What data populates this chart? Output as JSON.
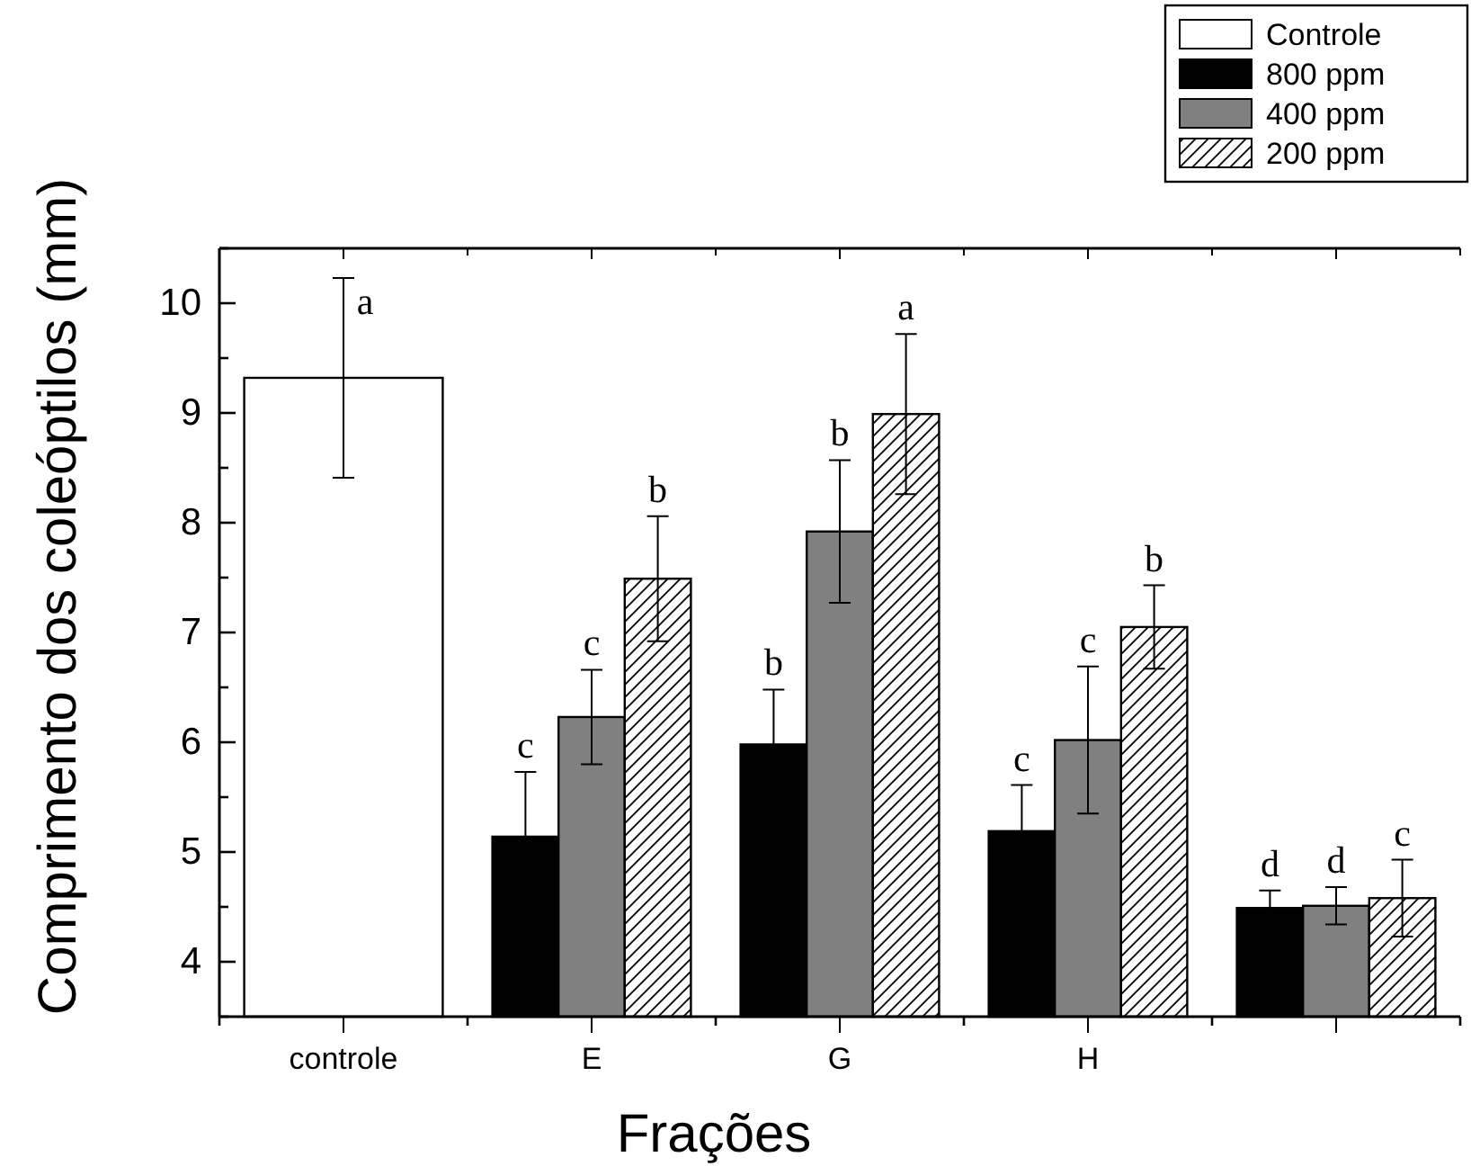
{
  "chart_data": {
    "type": "bar",
    "xlabel": "Frações",
    "ylabel": "Comprimento dos coleóptilos (mm)",
    "categories": [
      "controle",
      "E",
      "G",
      "H",
      null
    ],
    "series": [
      {
        "name": "Controle",
        "color": "#ffffff",
        "values": [
          9.32,
          null,
          null,
          null,
          null
        ],
        "errors": [
          0.91,
          null,
          null,
          null,
          null
        ],
        "value_labels": [
          "a",
          null,
          null,
          null,
          null
        ]
      },
      {
        "name": "800 ppm",
        "color": "#000000",
        "values": [
          null,
          5.14,
          5.98,
          5.19,
          4.49
        ],
        "errors": [
          null,
          0.59,
          0.5,
          0.42,
          0.16
        ],
        "value_labels": [
          null,
          "c",
          "b",
          "c",
          "d"
        ]
      },
      {
        "name": "400 ppm",
        "color": "#808080",
        "values": [
          null,
          6.23,
          7.92,
          6.02,
          4.51
        ],
        "errors": [
          null,
          0.43,
          0.65,
          0.67,
          0.17
        ],
        "value_labels": [
          null,
          "c",
          "b",
          "c",
          "d"
        ]
      },
      {
        "name": "200 ppm",
        "color": "#000000",
        "values": [
          null,
          7.49,
          8.99,
          7.05,
          4.58
        ],
        "errors": [
          null,
          0.57,
          0.73,
          0.38,
          0.35
        ],
        "value_labels": [
          null,
          "b",
          "a",
          "b",
          "c"
        ]
      }
    ],
    "ylim": [
      3.5,
      10.5
    ],
    "yticks": [
      {
        "value": 3.5,
        "label": null
      },
      4,
      {
        "value": 4.5,
        "label": null
      },
      5,
      {
        "value": 5.5,
        "label": null
      },
      6,
      {
        "value": 6.5,
        "label": null
      },
      7,
      {
        "value": 7.5,
        "label": null
      },
      8,
      {
        "value": 8.5,
        "label": null
      },
      9,
      {
        "value": 9.5,
        "label": null
      },
      10,
      {
        "value": 10.5,
        "label": null
      }
    ],
    "grid": false,
    "legend": "top right"
  }
}
